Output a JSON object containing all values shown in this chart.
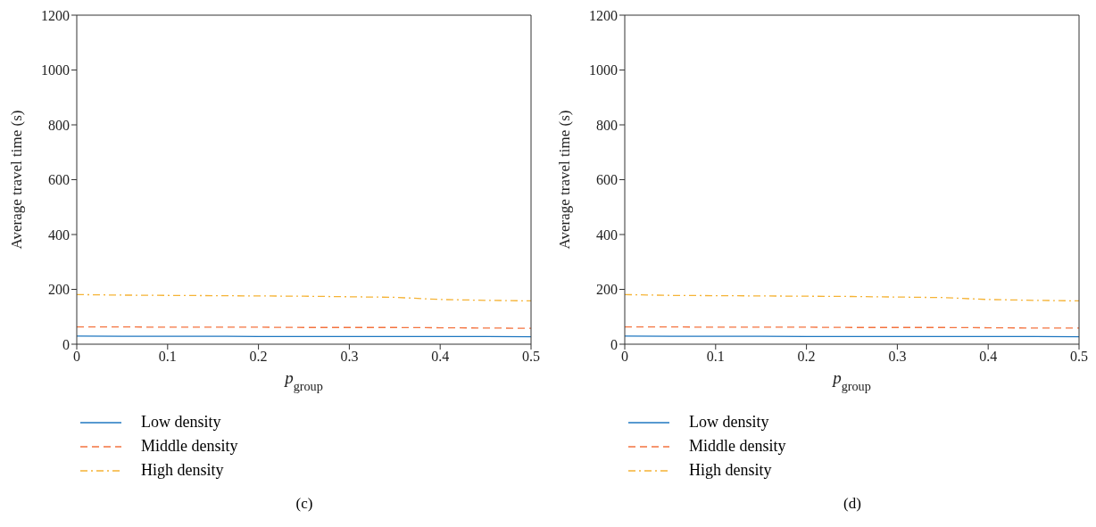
{
  "chart_data": [
    {
      "type": "line",
      "xlabel": "p$_{group}$",
      "ylabel": "Average travel time (s)",
      "x": [
        0,
        0.05,
        0.1,
        0.15,
        0.2,
        0.25,
        0.3,
        0.35,
        0.4,
        0.45,
        0.5
      ],
      "series": [
        {
          "name": "Low density",
          "color": "#1f77c0",
          "line_style": "solid",
          "values": [
            30,
            29,
            29,
            29,
            28,
            28,
            28,
            28,
            28,
            28,
            27
          ]
        },
        {
          "name": "Middle density",
          "color": "#f4733f",
          "line_style": "dashed",
          "values": [
            63,
            63,
            62,
            62,
            62,
            61,
            61,
            61,
            60,
            59,
            58
          ]
        },
        {
          "name": "High density",
          "color": "#f5b335",
          "line_style": "dashdot",
          "values": [
            181,
            179,
            178,
            177,
            176,
            175,
            173,
            171,
            163,
            160,
            158
          ]
        }
      ],
      "xlim": [
        0,
        0.5
      ],
      "xticks": [
        0,
        0.1,
        0.2,
        0.3,
        0.4,
        0.5
      ],
      "ylim": [
        0,
        1200
      ],
      "yticks": [
        0,
        200,
        400,
        600,
        800,
        1000,
        1200
      ],
      "grid": false,
      "legend": "bottom left",
      "marker": "none",
      "annotations": [
        "(c)"
      ]
    },
    {
      "type": "line",
      "xlabel": "p$_{group}$",
      "ylabel": "Average travel time (s)",
      "x": [
        0,
        0.05,
        0.1,
        0.15,
        0.2,
        0.25,
        0.3,
        0.35,
        0.4,
        0.45,
        0.5
      ],
      "series": [
        {
          "name": "Low density",
          "color": "#1f77c0",
          "line_style": "solid",
          "values": [
            30,
            29,
            29,
            29,
            28,
            28,
            28,
            28,
            28,
            28,
            27
          ]
        },
        {
          "name": "Middle density",
          "color": "#f4733f",
          "line_style": "dashed",
          "values": [
            63,
            63,
            62,
            62,
            62,
            61,
            61,
            61,
            60,
            59,
            59
          ]
        },
        {
          "name": "High density",
          "color": "#f5b335",
          "line_style": "dashdot",
          "values": [
            181,
            178,
            177,
            176,
            175,
            174,
            172,
            170,
            163,
            160,
            158
          ]
        }
      ],
      "xlim": [
        0,
        0.5
      ],
      "xticks": [
        0,
        0.1,
        0.2,
        0.3,
        0.4,
        0.5
      ],
      "ylim": [
        0,
        1200
      ],
      "yticks": [
        0,
        200,
        400,
        600,
        800,
        1000,
        1200
      ],
      "grid": false,
      "legend": "bottom left",
      "marker": "none",
      "annotations": [
        "(d)"
      ]
    }
  ]
}
